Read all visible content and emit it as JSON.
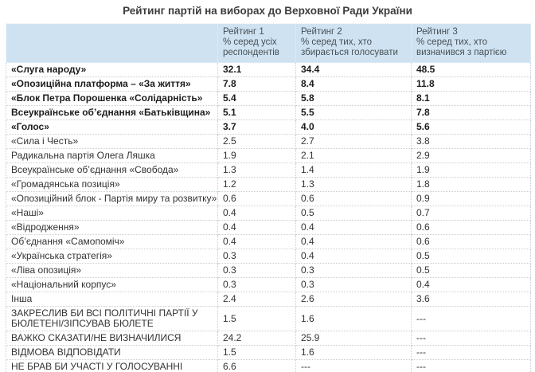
{
  "title": "Рейтинг партій на виборах до Верховної Ради України",
  "colors": {
    "page_background": "#ffffff",
    "header_background": "#cfe2f1",
    "header_text": "#475056",
    "body_text": "#333333",
    "bold_row_text": "#1c1c1c",
    "dotted_border": "#c6ced4",
    "table_bottom_border": "#b6c0c6",
    "title_text": "#3d3d3d"
  },
  "chart_data": {
    "type": "table",
    "title": "Рейтинг партій на виборах до Верховної Ради України",
    "legend_position": "none",
    "grid": "dotted cell borders",
    "columns": [
      {
        "label": "",
        "sublabel": ""
      },
      {
        "label": "Рейтинг 1",
        "sublabel": "% серед усіх респондентів"
      },
      {
        "label": "Рейтинг 2",
        "sublabel": "% серед тих, хто збирається голосувати"
      },
      {
        "label": "Рейтинг 3",
        "sublabel": "% серед тих, хто визначився з партією"
      }
    ],
    "rows": [
      {
        "party": "«Слуга народу»",
        "rating1": "32.1",
        "rating2": "34.4",
        "rating3": "48.5",
        "bold": true,
        "wrap": false
      },
      {
        "party": "«Опозиційна платформа – «За життя»",
        "rating1": "7.8",
        "rating2": "8.4",
        "rating3": "11.8",
        "bold": true,
        "wrap": false
      },
      {
        "party": "«Блок Петра Порошенка «Солідарність»",
        "rating1": "5.4",
        "rating2": "5.8",
        "rating3": "8.1",
        "bold": true,
        "wrap": false
      },
      {
        "party": "Всеукраїнське об’єднання «Батьківщина»",
        "rating1": "5.1",
        "rating2": "5.5",
        "rating3": "7.8",
        "bold": true,
        "wrap": false
      },
      {
        "party": "«Голос»",
        "rating1": "3.7",
        "rating2": "4.0",
        "rating3": "5.6",
        "bold": true,
        "wrap": false
      },
      {
        "party": "«Сила і Честь»",
        "rating1": "2.5",
        "rating2": "2.7",
        "rating3": "3.8",
        "bold": false,
        "wrap": false
      },
      {
        "party": "Радикальна партія Олега Ляшка",
        "rating1": "1.9",
        "rating2": "2.1",
        "rating3": "2.9",
        "bold": false,
        "wrap": false
      },
      {
        "party": "Всеукраїнське об’єднання «Свобода»",
        "rating1": "1.3",
        "rating2": "1.4",
        "rating3": "1.9",
        "bold": false,
        "wrap": false
      },
      {
        "party": "«Громадянська позиція»",
        "rating1": "1.2",
        "rating2": "1.3",
        "rating3": "1.8",
        "bold": false,
        "wrap": false
      },
      {
        "party": "«Опозиційний блок - Партія миру та розвитку»",
        "rating1": "0.6",
        "rating2": "0.6",
        "rating3": "0.9",
        "bold": false,
        "wrap": false
      },
      {
        "party": "«Наші»",
        "rating1": "0.4",
        "rating2": "0.5",
        "rating3": "0.7",
        "bold": false,
        "wrap": false
      },
      {
        "party": "«Відродження»",
        "rating1": "0.4",
        "rating2": "0.4",
        "rating3": "0.6",
        "bold": false,
        "wrap": false
      },
      {
        "party": "Об’єднання «Самопоміч»",
        "rating1": "0.4",
        "rating2": "0.4",
        "rating3": "0.6",
        "bold": false,
        "wrap": false
      },
      {
        "party": "«Українська стратегія»",
        "rating1": "0.3",
        "rating2": "0.4",
        "rating3": "0.5",
        "bold": false,
        "wrap": false
      },
      {
        "party": "«Ліва опозиція»",
        "rating1": "0.3",
        "rating2": "0.3",
        "rating3": "0.5",
        "bold": false,
        "wrap": false
      },
      {
        "party": "«Національний корпус»",
        "rating1": "0.3",
        "rating2": "0.3",
        "rating3": "0.4",
        "bold": false,
        "wrap": false
      },
      {
        "party": "Інша",
        "rating1": "2.4",
        "rating2": "2.6",
        "rating3": "3.6",
        "bold": false,
        "wrap": false
      },
      {
        "party": "ЗАКРЕСЛИВ БИ ВСІ ПОЛІТИЧНІ ПАРТІЇ У БЮЛЕТЕНІ/ЗІПСУВАВ БЮЛЕТЕ",
        "rating1": "1.5",
        "rating2": "1.6",
        "rating3": "---",
        "bold": false,
        "wrap": true
      },
      {
        "party": "ВАЖКО СКАЗАТИ/НЕ ВИЗНАЧИЛИСЯ",
        "rating1": "24.2",
        "rating2": "25.9",
        "rating3": "---",
        "bold": false,
        "wrap": false
      },
      {
        "party": "ВІДМОВА ВІДПОВІДАТИ",
        "rating1": "1.5",
        "rating2": "1.6",
        "rating3": "---",
        "bold": false,
        "wrap": false
      },
      {
        "party": "НЕ БРАВ БИ УЧАСТІ У ГОЛОСУВАННІ",
        "rating1": "6.6",
        "rating2": "---",
        "rating3": "---",
        "bold": false,
        "wrap": false
      }
    ]
  }
}
